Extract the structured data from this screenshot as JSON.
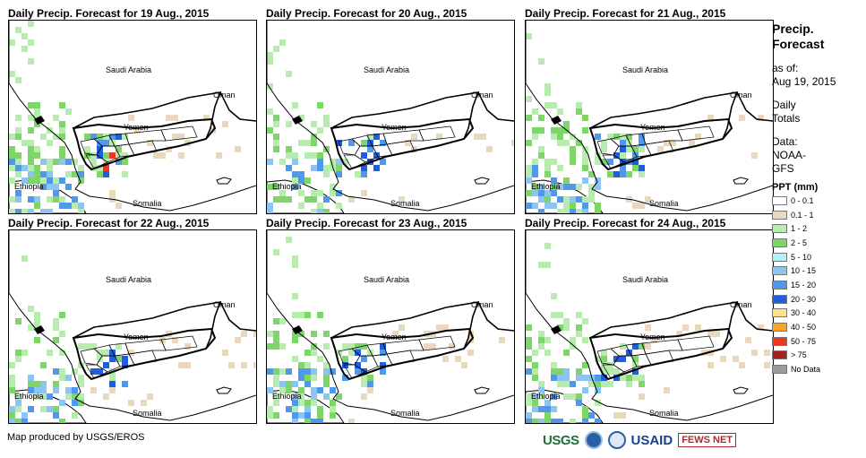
{
  "panels": [
    {
      "title": "Daily Precip. Forecast for 19 Aug., 2015",
      "intensity": 1.0
    },
    {
      "title": "Daily Precip. Forecast for 20 Aug., 2015",
      "intensity": 0.8
    },
    {
      "title": "Daily Precip. Forecast for 21 Aug., 2015",
      "intensity": 0.9
    },
    {
      "title": "Daily Precip. Forecast for 22 Aug., 2015",
      "intensity": 0.7
    },
    {
      "title": "Daily Precip. Forecast for 23 Aug., 2015",
      "intensity": 0.85
    },
    {
      "title": "Daily Precip. Forecast for 24 Aug., 2015",
      "intensity": 0.9
    }
  ],
  "map_labels": {
    "saudi": "Saudi Arabia",
    "oman": "Oman",
    "yemen": "Yemen",
    "ethiopia": "Ethiopia",
    "somalia": "Somalia"
  },
  "sidebar": {
    "title_line1": "Precip.",
    "title_line2": "Forecast",
    "asof_line1": "as of:",
    "asof_line2": "Aug 19, 2015",
    "daily_line1": "Daily",
    "daily_line2": "Totals",
    "data_line1": "Data:",
    "data_line2": "NOAA-",
    "data_line3": "GFS"
  },
  "legend": {
    "title": "PPT (mm)",
    "items": [
      {
        "label": "0 - 0.1",
        "color": "#ffffff"
      },
      {
        "label": "0.1 - 1",
        "color": "#e8d9bd"
      },
      {
        "label": "1 - 2",
        "color": "#b7ecae"
      },
      {
        "label": "2 - 5",
        "color": "#7ed66b"
      },
      {
        "label": "5 - 10",
        "color": "#b5f0f7"
      },
      {
        "label": "10 - 15",
        "color": "#8cc4f2"
      },
      {
        "label": "15 - 20",
        "color": "#4f98ea"
      },
      {
        "label": "20 - 30",
        "color": "#1f5ee0"
      },
      {
        "label": "30 - 40",
        "color": "#ffe28a"
      },
      {
        "label": "40 - 50",
        "color": "#f5a623"
      },
      {
        "label": "50 - 75",
        "color": "#f0361b"
      },
      {
        "label": "> 75",
        "color": "#a3221e"
      },
      {
        "label": "No Data",
        "color": "#9b9b9b"
      }
    ]
  },
  "footer": {
    "credit": "Map produced by USGS/EROS",
    "logo_usgs": "USGS",
    "logo_usaid": "USAID",
    "logo_fews": "FEWS NET"
  }
}
